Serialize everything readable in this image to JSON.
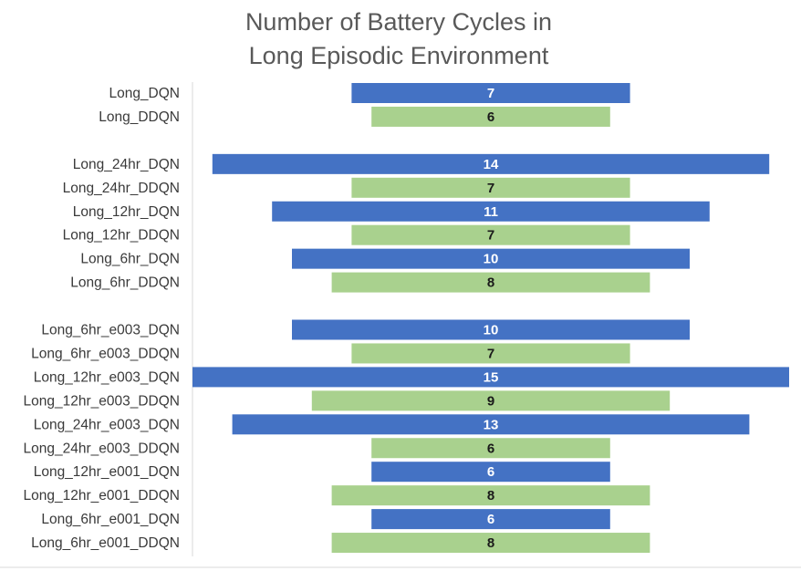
{
  "chart_data": {
    "type": "bar",
    "orientation": "horizontal",
    "layout": "centered (funnel)",
    "title": [
      "Number of Battery Cycles in",
      "Long Episodic Environment"
    ],
    "xlim": [
      0,
      15
    ],
    "grid": false,
    "legend": "none",
    "colors": {
      "DQN": "#4472C4",
      "DDQN": "#A9D18E"
    },
    "categories": [
      "Long_DQN",
      "Long_DDQN",
      "",
      "Long_24hr_DQN",
      "Long_24hr_DDQN",
      "Long_12hr_DQN",
      "Long_12hr_DDQN",
      "Long_6hr_DQN",
      "Long_6hr_DDQN",
      "",
      "Long_6hr_e003_DQN",
      "Long_6hr_e003_DDQN",
      "Long_12hr_e003_DQN",
      "Long_12hr_e003_DDQN",
      "Long_24hr_e003_DQN",
      "Long_24hr_e003_DDQN",
      "Long_12hr_e001_DQN",
      "Long_12hr_e001_DDQN",
      "Long_6hr_e001_DQN",
      "Long_6hr_e001_DDQN"
    ],
    "values": [
      7,
      6,
      null,
      14,
      7,
      11,
      7,
      10,
      8,
      null,
      10,
      7,
      15,
      9,
      13,
      6,
      6,
      8,
      6,
      8
    ],
    "bar_type": [
      "DQN",
      "DDQN",
      null,
      "DQN",
      "DDQN",
      "DQN",
      "DDQN",
      "DQN",
      "DDQN",
      null,
      "DQN",
      "DDQN",
      "DQN",
      "DDQN",
      "DQN",
      "DDQN",
      "DQN",
      "DDQN",
      "DQN",
      "DDQN"
    ]
  }
}
